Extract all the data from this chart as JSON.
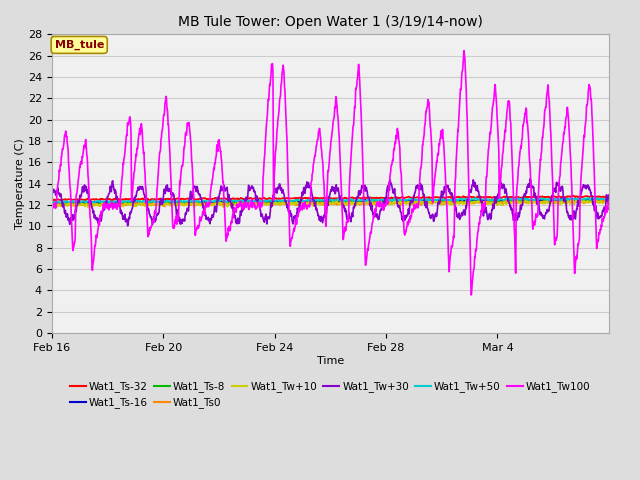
{
  "title": "MB Tule Tower: Open Water 1 (3/19/14-now)",
  "xlabel": "Time",
  "ylabel": "Temperature (C)",
  "ylim": [
    0,
    28
  ],
  "yticks": [
    0,
    2,
    4,
    6,
    8,
    10,
    12,
    14,
    16,
    18,
    20,
    22,
    24,
    26,
    28
  ],
  "x_tick_labels": [
    "Feb 16",
    "Feb 20",
    "Feb 24",
    "Feb 28",
    "Mar 4"
  ],
  "x_tick_positions": [
    0,
    4,
    8,
    12,
    16
  ],
  "xlim": [
    0,
    20
  ],
  "background_color": "#dddddd",
  "plot_bg_color": "#f0f0f0",
  "grid_color": "#cccccc",
  "series": [
    {
      "name": "Wat1_Ts-32",
      "color": "#ff0000",
      "lw": 1.2
    },
    {
      "name": "Wat1_Ts-16",
      "color": "#0000cc",
      "lw": 1.2
    },
    {
      "name": "Wat1_Ts-8",
      "color": "#00bb00",
      "lw": 1.2
    },
    {
      "name": "Wat1_Ts0",
      "color": "#ff8800",
      "lw": 1.2
    },
    {
      "name": "Wat1_Tw+10",
      "color": "#cccc00",
      "lw": 1.2
    },
    {
      "name": "Wat1_Tw+30",
      "color": "#8800cc",
      "lw": 1.2
    },
    {
      "name": "Wat1_Tw+50",
      "color": "#00cccc",
      "lw": 1.2
    },
    {
      "name": "Wat1_Tw100",
      "color": "#ff00ff",
      "lw": 1.2
    }
  ],
  "annotation_text": "MB_tule",
  "annotation_color": "#880000",
  "annotation_bg": "#ffff99",
  "annotation_border": "#aa8800"
}
